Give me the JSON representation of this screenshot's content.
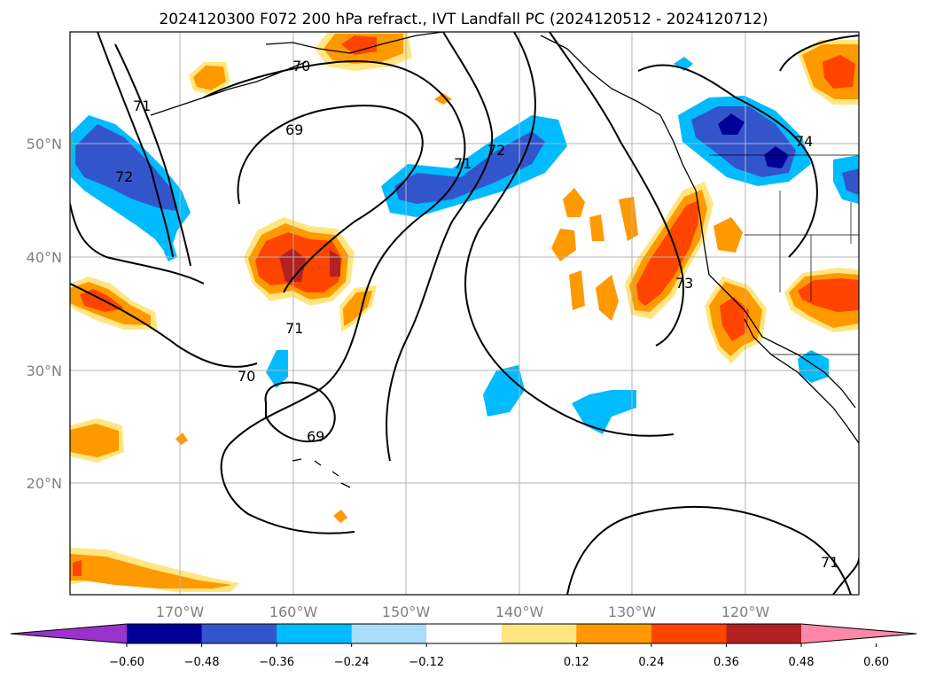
{
  "title": "2024120300 F072 200 hPa refract., IVT Landfall PC (2024120512 - 2024120712)",
  "map": {
    "lon_range": [
      -180,
      -110
    ],
    "lat_range": [
      10,
      60
    ],
    "gridlines": true,
    "lat_ticks": [
      "50°N",
      "40°N",
      "30°N",
      "20°N"
    ],
    "lon_ticks": [
      "170°W",
      "160°W",
      "150°W",
      "140°W",
      "130°W",
      "120°W"
    ],
    "contour_labels": [
      "71",
      "72",
      "70",
      "69",
      "71",
      "72",
      "74",
      "71",
      "70",
      "69",
      "73",
      "71"
    ]
  },
  "colorbar": {
    "tick_labels": [
      "−0.60",
      "−0.48",
      "−0.36",
      "−0.24",
      "−0.12",
      "0.12",
      "0.24",
      "0.36",
      "0.48",
      "0.60"
    ],
    "colors": [
      "#9933cc",
      "#000099",
      "#3355cc",
      "#00bbff",
      "#aaddf7",
      "#ffffff",
      "#ffe680",
      "#ff9900",
      "#ff4400",
      "#b22222",
      "#ff88aa"
    ],
    "extend": "both"
  },
  "palette": {
    "pos1": "#ffe680",
    "pos2": "#ff9900",
    "pos3": "#ff4400",
    "pos4": "#b22222",
    "neg1": "#aaddf7",
    "neg2": "#00bbff",
    "neg3": "#3355cc",
    "neg4": "#000099"
  }
}
